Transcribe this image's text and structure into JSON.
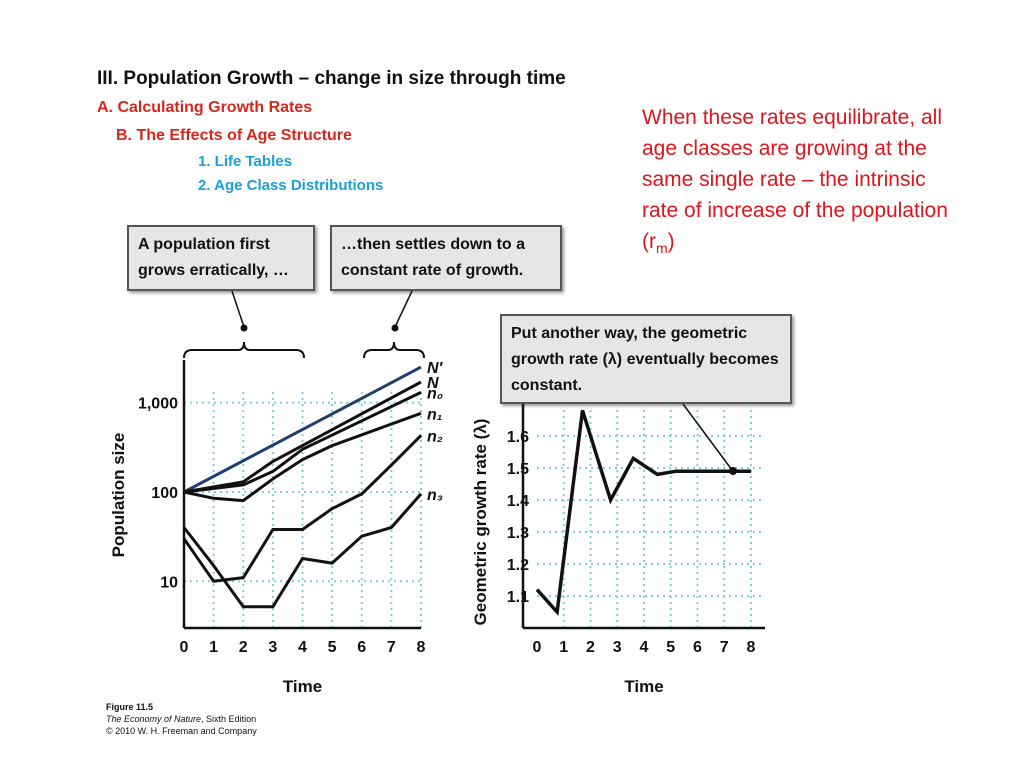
{
  "slide": {
    "heading_1": "III. Population Growth – change in size through time",
    "heading_2": "A. Calculating Growth Rates",
    "heading_3": "B. The Effects of Age Structure",
    "heading_4": "1. Life Tables",
    "heading_5": "2. Age Class Distributions",
    "note_text": "When these rates equilibrate, all age classes are growing at the same single rate – the intrinsic rate of increase of the population (r",
    "note_sub": "m",
    "note_end": ")"
  },
  "callouts": {
    "left_first": "A population first grows erratically, …",
    "left_then": "…then settles down to a constant rate of growth.",
    "right": "Put another way, the geometric growth rate (λ) eventually becomes constant."
  },
  "credit": {
    "figure": "Figure 11.5",
    "book_title": "The Economy of Nature",
    "book_edition": ", Sixth Edition",
    "copyright": "© 2010 W. H. Freeman and Company"
  },
  "colors": {
    "red": "#d9261c",
    "blue_text": "#1a9fd6",
    "n_prime_line": "#1f3f6e",
    "grid": "#7ecfe0"
  },
  "chart_data": [
    {
      "type": "line",
      "ylabel": "Population size",
      "xlabel": "Time",
      "y_scale": "log",
      "ylim": [
        3,
        3000
      ],
      "xlim": [
        0,
        8
      ],
      "xticks": [
        "0",
        "1",
        "2",
        "3",
        "4",
        "5",
        "6",
        "7",
        "8"
      ],
      "yticks": [
        "10",
        "100",
        "1,000"
      ],
      "grid": "dotted",
      "series": [
        {
          "name": "N′",
          "x": [
            0,
            8
          ],
          "y": [
            100,
            2500
          ]
        },
        {
          "name": "N",
          "x": [
            0,
            2,
            3,
            8
          ],
          "y": [
            100,
            130,
            220,
            1700
          ]
        },
        {
          "name": "n₀",
          "x": [
            0,
            2,
            3,
            4,
            8
          ],
          "y": [
            100,
            120,
            170,
            300,
            1300
          ]
        },
        {
          "name": "n₁",
          "x": [
            0,
            1,
            2,
            3,
            4,
            5,
            8
          ],
          "y": [
            100,
            85,
            80,
            140,
            230,
            330,
            760
          ]
        },
        {
          "name": "n₂",
          "x": [
            0,
            1,
            2,
            3,
            4,
            5,
            6,
            7,
            8
          ],
          "y": [
            30,
            10,
            11,
            38,
            38,
            65,
            95,
            200,
            430
          ]
        },
        {
          "name": "n₃",
          "x": [
            0,
            1,
            2,
            3,
            4,
            5,
            6,
            7,
            8
          ],
          "y": [
            40,
            15,
            5.2,
            5.2,
            18,
            16,
            32,
            40,
            95
          ]
        }
      ]
    },
    {
      "type": "line",
      "ylabel": "Geometric growth rate (λ)",
      "xlabel": "Time",
      "ylim": [
        1.0,
        1.7
      ],
      "xlim": [
        0,
        8
      ],
      "xticks": [
        "0",
        "1",
        "2",
        "3",
        "4",
        "5",
        "6",
        "7",
        "8"
      ],
      "yticks": [
        "1.1",
        "1.2",
        "1.3",
        "1.4",
        "1.5",
        "1.6"
      ],
      "grid": "dotted",
      "series": [
        {
          "x": [
            0,
            0.75,
            1.7,
            2.75,
            3.6,
            4.5,
            5.2,
            6,
            7,
            8
          ],
          "y": [
            1.12,
            1.05,
            1.68,
            1.4,
            1.53,
            1.48,
            1.49,
            1.49,
            1.49,
            1.49
          ]
        }
      ]
    }
  ]
}
